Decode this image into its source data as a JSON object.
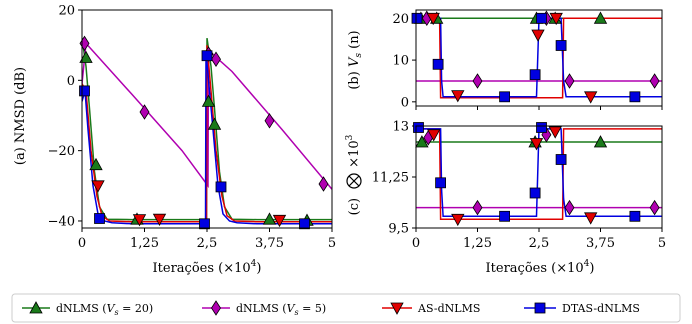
{
  "figure": {
    "x_label_main": "Iterações (",
    "x_label_mult": "×10",
    "x_label_exp": "4",
    "x_label_close": ")",
    "xlim": [
      0,
      5
    ],
    "x_ticks": [
      0,
      1.25,
      2.5,
      3.75,
      5
    ],
    "x_tick_labels": [
      "0",
      "1,25",
      "2,5",
      "3,75",
      "5"
    ]
  },
  "chart_data": [
    {
      "id": "a",
      "type": "line",
      "ylabel": "(a) NMSD (dB)",
      "xlim": [
        0,
        5
      ],
      "ylim": [
        -42,
        20
      ],
      "y_ticks": [
        20,
        0,
        -20,
        -40
      ],
      "y_tick_labels": [
        "20",
        "0",
        "−20",
        "−40"
      ],
      "series": [
        {
          "name": "dNLMS (V_s = 20)",
          "color": "#1a7a1a",
          "marker": "triangle-up",
          "x": [
            0,
            0.08,
            0.15,
            0.25,
            0.35,
            0.5,
            1.0,
            1.5,
            2.0,
            2.49,
            2.5,
            2.58,
            2.65,
            2.75,
            2.85,
            3.0,
            3.5,
            4.0,
            4.5,
            5.0
          ],
          "y": [
            12,
            4,
            -8,
            -26,
            -36,
            -39.5,
            -39.6,
            -39.6,
            -39.6,
            -39.6,
            12,
            4,
            -8,
            -26,
            -36,
            -39.5,
            -39.6,
            -39.6,
            -39.6,
            -39.6
          ],
          "markers_x": [
            0.08,
            0.28,
            1.1,
            2.53,
            2.65,
            3.75,
            4.5
          ],
          "markers_y": [
            6.5,
            -24,
            -39.5,
            -6,
            -12.5,
            -39.5,
            -39.8
          ]
        },
        {
          "name": "dNLMS (V_s = 5)",
          "color": "#b000b0",
          "marker": "diamond",
          "x": [
            0,
            0.08,
            1.0,
            2.0,
            2.52,
            2.53,
            3.0,
            4.0,
            5.0
          ],
          "y": [
            -1,
            10.5,
            -4,
            -20,
            -30,
            8.5,
            2.5,
            -14,
            -31
          ],
          "markers_x": [
            0.05,
            1.25,
            2.53,
            2.68,
            3.75,
            4.83
          ],
          "markers_y": [
            10.5,
            -9,
            7.5,
            6,
            -11.5,
            -29.5
          ]
        },
        {
          "name": "AS-dNLMS",
          "color": "#e00000",
          "marker": "triangle-down",
          "x": [
            0,
            0.08,
            0.18,
            0.3,
            0.4,
            0.55,
            1.0,
            2.0,
            2.49,
            2.5,
            2.58,
            2.68,
            2.8,
            2.9,
            3.05,
            3.5,
            4.0,
            5.0
          ],
          "y": [
            -1,
            -3,
            -20,
            -33,
            -38.5,
            -40,
            -40.2,
            -40.2,
            -40.2,
            10,
            -3,
            -20,
            -33,
            -38.5,
            -40,
            -40.2,
            -40.2,
            -40.2
          ],
          "markers_x": [
            0.32,
            1.15,
            1.55,
            3.95
          ],
          "markers_y": [
            -30,
            -39.6,
            -39.5,
            -39.8
          ]
        },
        {
          "name": "DTAS-dNLMS",
          "color": "#0000e0",
          "marker": "square",
          "x": [
            0,
            0.06,
            0.12,
            0.22,
            0.32,
            0.45,
            0.6,
            1.0,
            2.0,
            2.47,
            2.48,
            2.55,
            2.62,
            2.72,
            2.82,
            2.95,
            3.1,
            3.5,
            4.5,
            5.0
          ],
          "y": [
            -6,
            -3,
            -14,
            -30,
            -38,
            -40,
            -40.5,
            -40.8,
            -40.8,
            -40.8,
            8,
            -3,
            -14,
            -30,
            -38,
            -40,
            -40.5,
            -40.8,
            -40.8,
            -40.8
          ],
          "markers_x": [
            0.05,
            0.35,
            2.45,
            2.5,
            2.78,
            4.45
          ],
          "markers_y": [
            -3,
            -39.3,
            -40.8,
            7,
            -30.3,
            -40.8
          ]
        }
      ]
    },
    {
      "id": "b",
      "type": "line",
      "ylabel_prefix": "(b) ",
      "ylabel_var": "V",
      "ylabel_sub": "s",
      "ylabel_suffix": " (n)",
      "xlim": [
        0,
        5
      ],
      "ylim": [
        -1,
        22
      ],
      "y_ticks": [
        20,
        10,
        0
      ],
      "y_tick_labels": [
        "20",
        "10",
        "0"
      ],
      "series": [
        {
          "name": "dNLMS (V_s = 20)",
          "color": "#1a7a1a",
          "marker": "triangle-up",
          "x": [
            0,
            5
          ],
          "y": [
            20,
            20
          ],
          "markers_x": [
            0.1,
            0.42,
            2.45,
            2.83,
            3.75
          ],
          "markers_y": [
            20,
            20,
            20,
            20,
            20
          ]
        },
        {
          "name": "dNLMS (V_s = 5)",
          "color": "#b000b0",
          "marker": "diamond",
          "x": [
            0,
            5
          ],
          "y": [
            5,
            5
          ],
          "markers_x": [
            0.22,
            1.25,
            2.65,
            3.12,
            4.85
          ],
          "markers_y": [
            20,
            5,
            20,
            5,
            5
          ]
        },
        {
          "name": "AS-dNLMS",
          "color": "#e00000",
          "marker": "triangle-down",
          "x": [
            0,
            0.48,
            0.5,
            2.98,
            3.0,
            5.0
          ],
          "y": [
            20,
            20,
            1,
            1,
            20,
            20
          ],
          "markers_x": [
            0.35,
            0.85,
            2.48,
            2.85,
            3.55
          ],
          "markers_y": [
            20,
            1.5,
            16,
            20,
            1.2
          ]
        },
        {
          "name": "DTAS-dNLMS",
          "color": "#0000e0",
          "marker": "square",
          "x": [
            0,
            0.5,
            0.52,
            0.55,
            2.45,
            2.5,
            2.52,
            2.95,
            3.0,
            3.05,
            5.0
          ],
          "y": [
            20,
            20,
            5,
            1.2,
            1.2,
            20,
            20,
            20,
            5,
            1.2,
            1.2
          ],
          "markers_x": [
            0.02,
            0.45,
            1.8,
            2.42,
            2.55,
            2.95,
            4.45
          ],
          "markers_y": [
            20,
            9,
            1.2,
            6.5,
            20,
            13.5,
            1.2
          ]
        }
      ]
    },
    {
      "id": "c",
      "type": "line",
      "ylabel_prefix": "(c) ",
      "ylabel_mult": "×10",
      "ylabel_exp": "3",
      "xlim": [
        0,
        5
      ],
      "ylim": [
        9.5,
        13
      ],
      "y_ticks": [
        13,
        11.25,
        9.5
      ],
      "y_tick_labels": [
        "13",
        "11,25",
        "9,5"
      ],
      "series": [
        {
          "name": "dNLMS (V_s = 20)",
          "color": "#1a7a1a",
          "marker": "triangle-up",
          "x": [
            0,
            5
          ],
          "y": [
            12.45,
            12.45
          ],
          "markers_x": [
            0.12,
            2.42,
            3.75
          ],
          "markers_y": [
            12.45,
            12.45,
            12.45
          ]
        },
        {
          "name": "dNLMS (V_s = 5)",
          "color": "#b000b0",
          "marker": "diamond",
          "x": [
            0,
            5
          ],
          "y": [
            10.2,
            10.2
          ],
          "markers_x": [
            0.25,
            1.25,
            2.65,
            3.12,
            4.85
          ],
          "markers_y": [
            12.6,
            10.2,
            12.7,
            10.2,
            10.2
          ]
        },
        {
          "name": "AS-dNLMS",
          "color": "#e00000",
          "marker": "triangle-down",
          "x": [
            0,
            0.48,
            0.5,
            2.98,
            3.0,
            5.0
          ],
          "y": [
            12.9,
            12.9,
            9.8,
            9.8,
            12.9,
            12.9
          ],
          "markers_x": [
            0.36,
            0.85,
            2.45,
            2.83,
            3.55
          ],
          "markers_y": [
            12.7,
            9.8,
            12.4,
            12.8,
            9.85
          ]
        },
        {
          "name": "DTAS-dNLMS",
          "color": "#0000e0",
          "marker": "square",
          "x": [
            0,
            0.5,
            0.52,
            0.55,
            2.45,
            2.5,
            2.52,
            2.95,
            3.0,
            3.05,
            5.0
          ],
          "y": [
            12.9,
            12.9,
            10.8,
            9.9,
            9.9,
            12.9,
            12.9,
            12.9,
            10.5,
            9.9,
            9.9
          ],
          "markers_x": [
            0.05,
            0.5,
            1.8,
            2.42,
            2.55,
            2.95,
            4.45
          ],
          "markers_y": [
            12.95,
            11.05,
            9.9,
            10.7,
            12.95,
            11.85,
            9.9
          ]
        }
      ]
    }
  ],
  "legend": {
    "items": [
      {
        "prefix": "dNLMS (",
        "var": "V",
        "sub": "s",
        "suffix": " = 20)",
        "color": "#1a7a1a",
        "marker": "triangle-up"
      },
      {
        "prefix": "dNLMS (",
        "var": "V",
        "sub": "s",
        "suffix": " = 5)",
        "color": "#b000b0",
        "marker": "diamond"
      },
      {
        "prefix": "AS-dNLMS",
        "var": "",
        "sub": "",
        "suffix": "",
        "color": "#e00000",
        "marker": "triangle-down"
      },
      {
        "prefix": "DTAS-dNLMS",
        "var": "",
        "sub": "",
        "suffix": "",
        "color": "#0000e0",
        "marker": "square"
      }
    ]
  }
}
